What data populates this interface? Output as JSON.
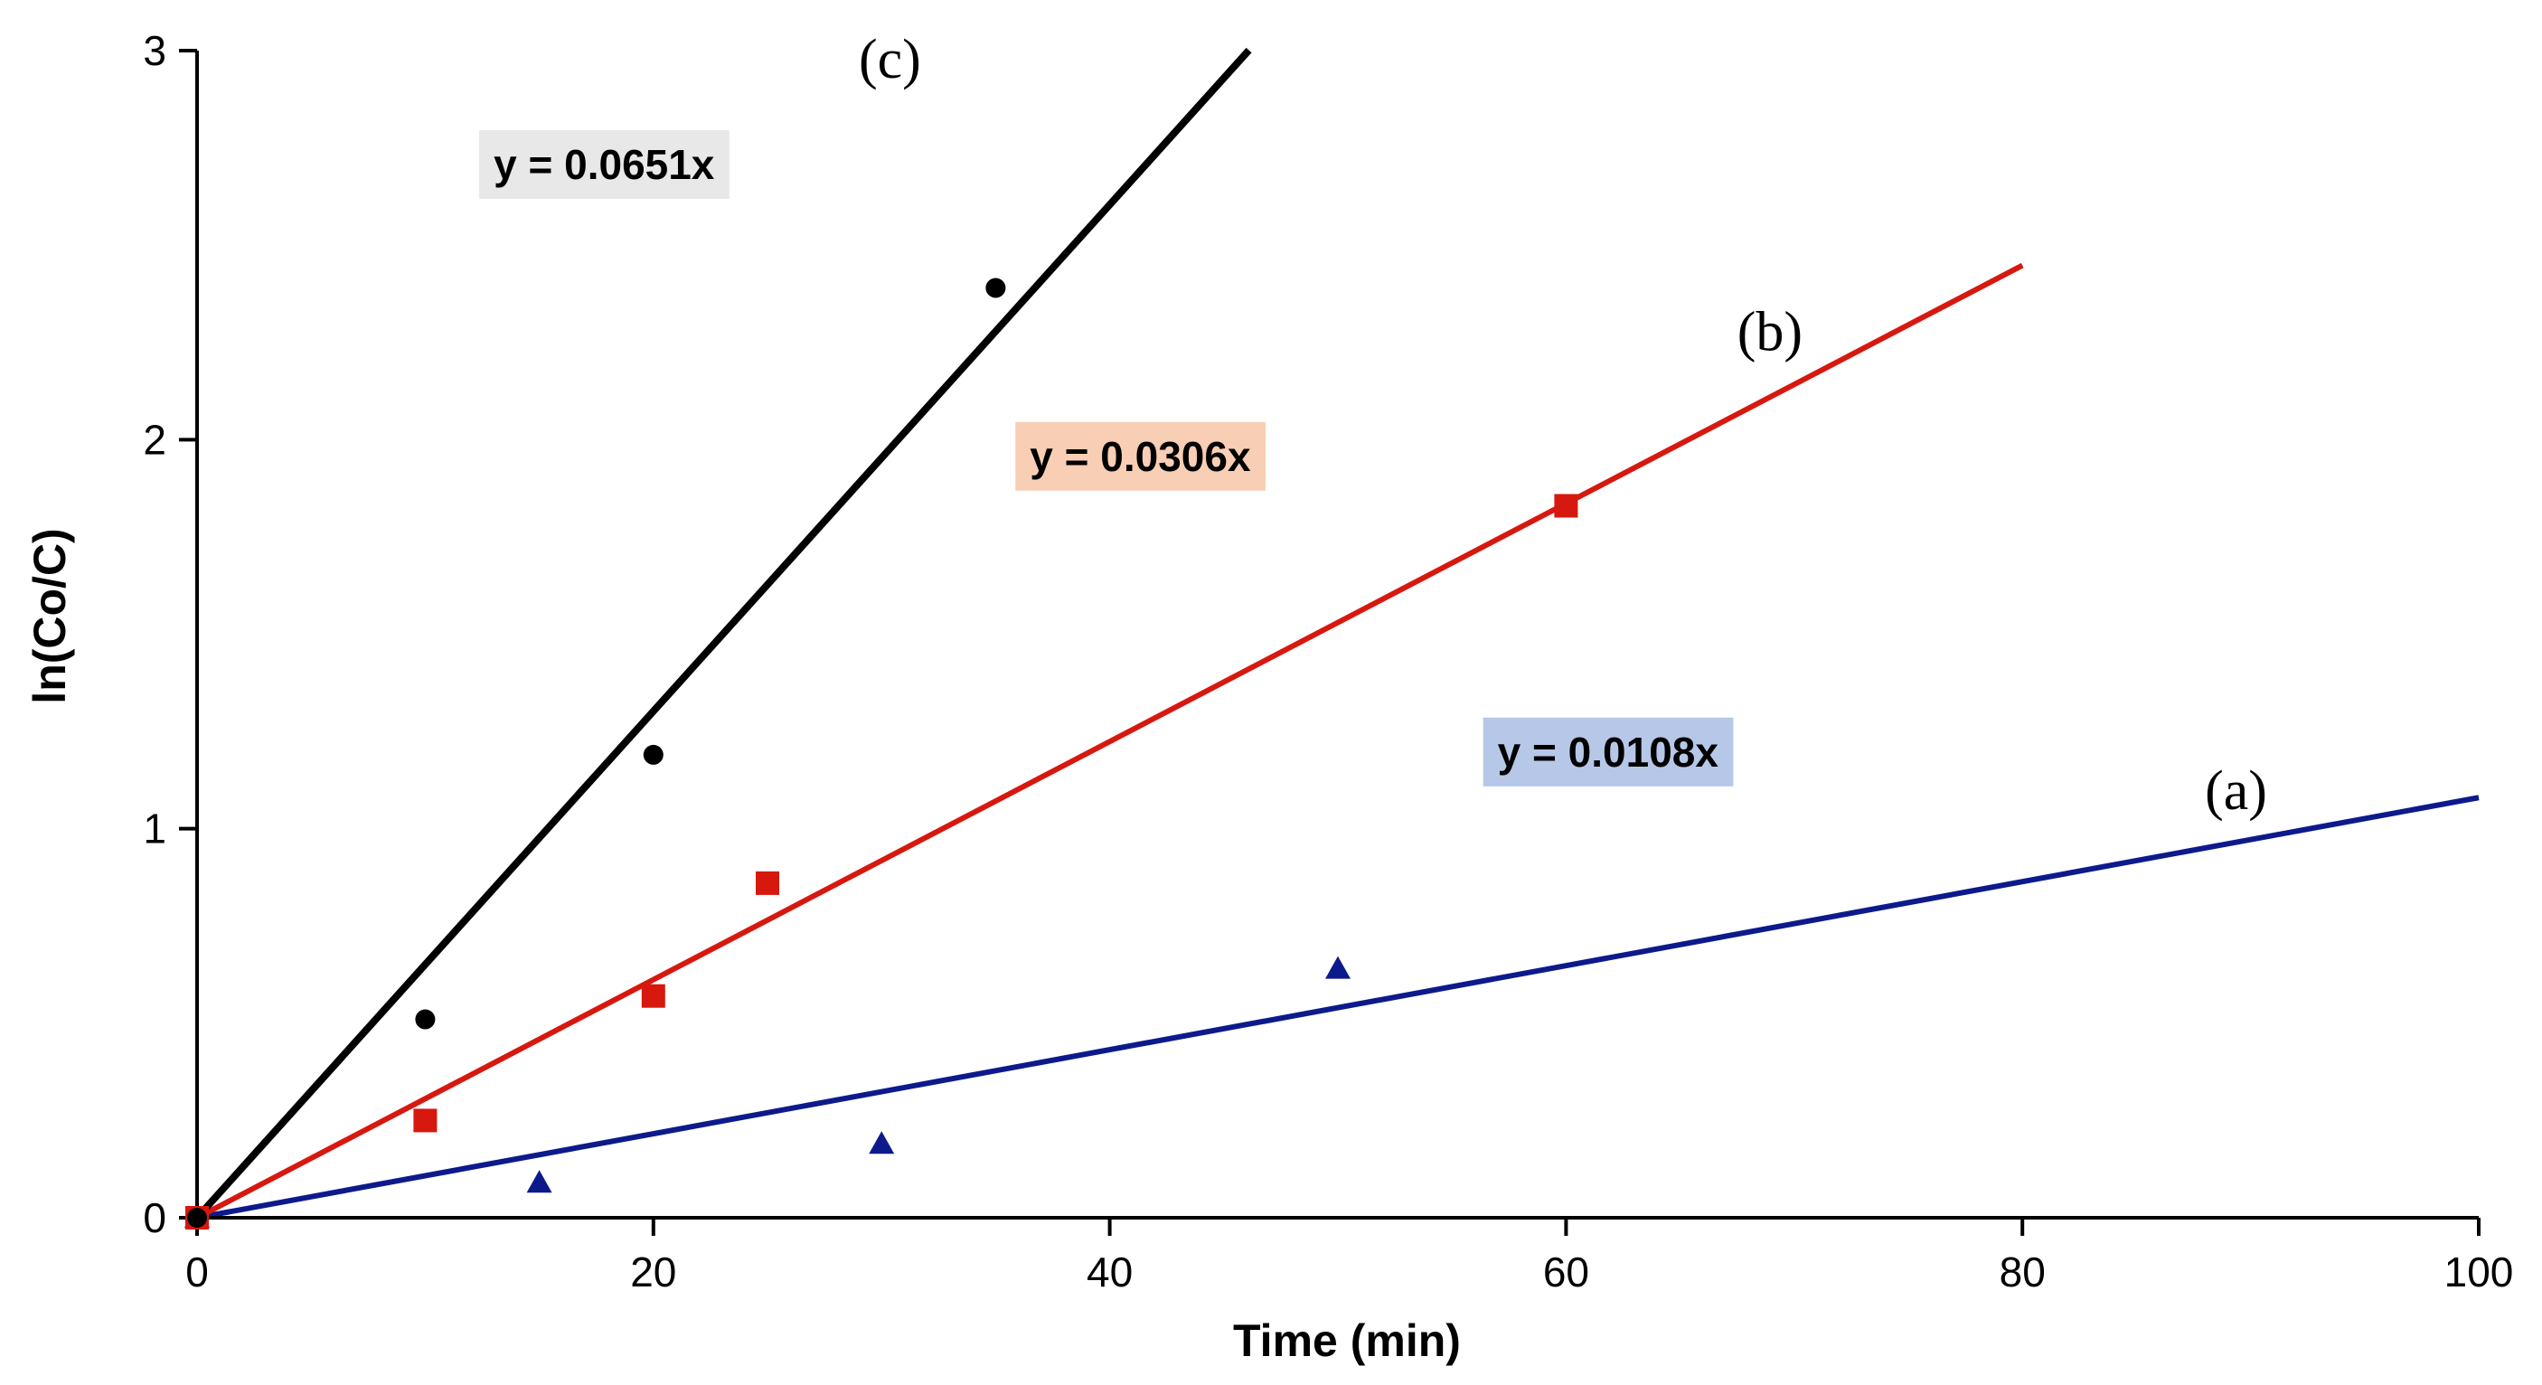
{
  "chart_data": {
    "type": "scatter",
    "title": "",
    "xlabel": "Time (min)",
    "ylabel": "ln(Co/C)",
    "xlim": [
      0,
      100
    ],
    "ylim": [
      0,
      3
    ],
    "xticks": [
      0,
      20,
      40,
      60,
      80,
      100
    ],
    "yticks": [
      0,
      1,
      2,
      3
    ],
    "grid": false,
    "series": [
      {
        "id": "a",
        "curve_label": "(a)",
        "color": "#0d1a8c",
        "marker": "triangle",
        "x": [
          0,
          15,
          30,
          50
        ],
        "y": [
          0,
          0.09,
          0.19,
          0.64
        ],
        "trendline": {
          "slope": 0.0108,
          "x_end": 100,
          "equation": "y = 0.0108x",
          "box_color": "#b7c7e8"
        }
      },
      {
        "id": "b",
        "curve_label": "(b)",
        "color": "#d7180f",
        "marker": "square",
        "x": [
          0,
          10,
          20,
          25,
          60
        ],
        "y": [
          0,
          0.25,
          0.57,
          0.86,
          1.83
        ],
        "trendline": {
          "slope": 0.0306,
          "x_end": 80,
          "equation": "y = 0.0306x",
          "box_color": "#f8cfb4"
        }
      },
      {
        "id": "c",
        "curve_label": "(c)",
        "color": "#000000",
        "marker": "circle",
        "x": [
          0,
          10,
          20,
          35
        ],
        "y": [
          0,
          0.51,
          1.19,
          2.39
        ],
        "trendline": {
          "slope": 0.0651,
          "x_end": 46.1,
          "equation": "y = 0.0651x",
          "box_color": "#e8e8e8"
        }
      }
    ],
    "annotations": [
      {
        "series": "c",
        "kind": "equation",
        "text": "y = 0.0651x",
        "x": 13,
        "y": 2.67
      },
      {
        "series": "b",
        "kind": "equation",
        "text": "y = 0.0306x",
        "x": 36.5,
        "y": 1.92
      },
      {
        "series": "a",
        "kind": "equation",
        "text": "y = 0.0108x",
        "x": 57,
        "y": 1.16
      },
      {
        "series": "c",
        "kind": "curve-label",
        "text": "(c)",
        "x": 29,
        "y": 2.93
      },
      {
        "series": "b",
        "kind": "curve-label",
        "text": "(b)",
        "x": 67.5,
        "y": 2.23
      },
      {
        "series": "a",
        "kind": "curve-label",
        "text": "(a)",
        "x": 88,
        "y": 1.05
      }
    ]
  }
}
